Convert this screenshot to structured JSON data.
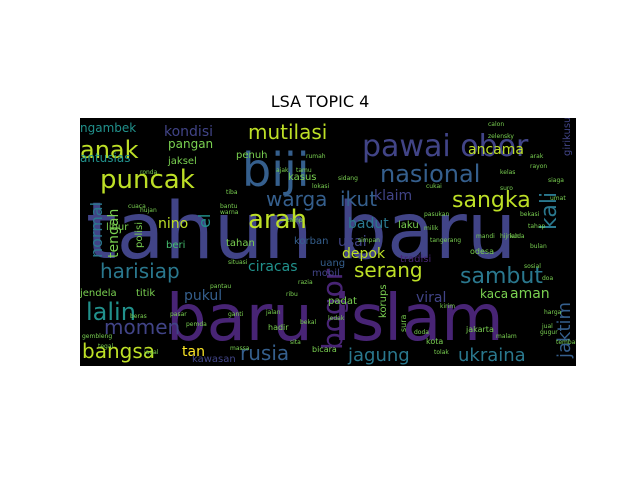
{
  "title": "LSA TOPIC 4",
  "colors": {
    "background": "#000000",
    "palette": [
      "#440154",
      "#482475",
      "#414487",
      "#355f8d",
      "#2a788e",
      "#21918c",
      "#22a884",
      "#44bf70",
      "#7ad151",
      "#bddf26",
      "#fde725"
    ]
  },
  "words": [
    {
      "text": "tahun baru",
      "color": "#414487"
    },
    {
      "text": "baru islam",
      "color": "#482475"
    },
    {
      "text": "biji",
      "color": "#355f8d"
    },
    {
      "text": "pawai obor",
      "color": "#414487"
    },
    {
      "text": "puncak",
      "color": "#bddf26"
    },
    {
      "text": "anak",
      "color": "#bddf26"
    },
    {
      "text": "mutilasi",
      "color": "#bddf26"
    },
    {
      "text": "nasional",
      "color": "#355f8d"
    },
    {
      "text": "sangka",
      "color": "#bddf26"
    },
    {
      "text": "kali",
      "color": "#2a788e"
    },
    {
      "text": "arah",
      "color": "#bddf26"
    },
    {
      "text": "warga",
      "color": "#355f8d"
    },
    {
      "text": "ikut",
      "color": "#355f8d"
    },
    {
      "text": "harisiap",
      "color": "#2a788e"
    },
    {
      "text": "serang",
      "color": "#bddf26"
    },
    {
      "text": "sambut",
      "color": "#2a788e"
    },
    {
      "text": "bogor",
      "color": "#482475"
    },
    {
      "text": "lalin",
      "color": "#21918c"
    },
    {
      "text": "momen",
      "color": "#414487"
    },
    {
      "text": "bangsa",
      "color": "#bddf26"
    },
    {
      "text": "tan",
      "color": "#fde725"
    },
    {
      "text": "rusia",
      "color": "#355f8d"
    },
    {
      "text": "jagung",
      "color": "#2a788e"
    },
    {
      "text": "ukraina",
      "color": "#2a788e"
    },
    {
      "text": "jaktim",
      "color": "#355f8d"
    },
    {
      "text": "aman",
      "color": "#7ad151"
    },
    {
      "text": "ancama",
      "color": "#bddf26"
    },
    {
      "text": "klaim",
      "color": "#414487"
    },
    {
      "text": "kondisi",
      "color": "#414487"
    },
    {
      "text": "antusias",
      "color": "#21918c"
    },
    {
      "text": "ngambek",
      "color": "#21918c"
    },
    {
      "text": "pangan",
      "color": "#7ad151"
    },
    {
      "text": "jaksel",
      "color": "#7ad151"
    },
    {
      "text": "normal",
      "color": "#2a788e"
    },
    {
      "text": "tengah",
      "color": "#7ad151"
    },
    {
      "text": "nino",
      "color": "#bddf26"
    },
    {
      "text": "el",
      "color": "#21918c"
    },
    {
      "text": "beri",
      "color": "#44bf70"
    },
    {
      "text": "ciracas",
      "color": "#21918c"
    },
    {
      "text": "depok",
      "color": "#bddf26"
    },
    {
      "text": "usai",
      "color": "#414487"
    },
    {
      "text": "badut",
      "color": "#2a788e"
    },
    {
      "text": "viral",
      "color": "#414487"
    },
    {
      "text": "kaca",
      "color": "#7ad151"
    },
    {
      "text": "pukul",
      "color": "#355f8d"
    },
    {
      "text": "jendela",
      "color": "#7ad151"
    },
    {
      "text": "titik",
      "color": "#7ad151"
    },
    {
      "text": "korban",
      "color": "#355f8d"
    },
    {
      "text": "mobil",
      "color": "#414487"
    },
    {
      "text": "uang",
      "color": "#355f8d"
    },
    {
      "text": "korups",
      "color": "#7ad151"
    },
    {
      "text": "tradisi",
      "color": "#482475"
    },
    {
      "text": "kawasan",
      "color": "#414487"
    },
    {
      "text": "padat",
      "color": "#7ad151"
    },
    {
      "text": "kasus",
      "color": "#7ad151"
    },
    {
      "text": "penuh",
      "color": "#7ad151"
    },
    {
      "text": "polisi",
      "color": "#7ad151"
    },
    {
      "text": "libur",
      "color": "#7ad151"
    },
    {
      "text": "tahan",
      "color": "#7ad151"
    },
    {
      "text": "laku",
      "color": "#7ad151"
    },
    {
      "text": "girikusumo",
      "color": "#414487"
    },
    {
      "text": "jakarta",
      "color": "#7ad151"
    },
    {
      "text": "kota",
      "color": "#7ad151"
    },
    {
      "text": "bicara",
      "color": "#7ad151"
    },
    {
      "text": "odesa",
      "color": "#7ad151"
    },
    {
      "text": "hadir",
      "color": "#7ad151"
    },
    {
      "text": "sura",
      "color": "#7ad151"
    },
    {
      "text": "calon",
      "color": "#7ad151"
    },
    {
      "text": "zelensky",
      "color": "#7ad151"
    },
    {
      "text": "simpan",
      "color": "#7ad151"
    },
    {
      "text": "kelas",
      "color": "#7ad151"
    },
    {
      "text": "gembleng",
      "color": "#7ad151"
    },
    {
      "text": "siaga",
      "color": "#7ad151"
    },
    {
      "text": "pasukan",
      "color": "#7ad151"
    },
    {
      "text": "massa",
      "color": "#7ad151"
    },
    {
      "text": "sita",
      "color": "#7ad151"
    },
    {
      "text": "tiba",
      "color": "#7ad151"
    },
    {
      "text": "situasi",
      "color": "#7ad151"
    },
    {
      "text": "bulan",
      "color": "#7ad151"
    },
    {
      "text": "tangerang",
      "color": "#7ad151"
    },
    {
      "text": "bekasi",
      "color": "#7ad151"
    },
    {
      "text": "jual",
      "color": "#7ad151"
    },
    {
      "text": "harga",
      "color": "#7ad151"
    },
    {
      "text": "beras",
      "color": "#7ad151"
    },
    {
      "text": "pasar",
      "color": "#7ad151"
    },
    {
      "text": "jalan",
      "color": "#7ad151"
    },
    {
      "text": "ribu",
      "color": "#7ad151"
    },
    {
      "text": "sosial",
      "color": "#7ad151"
    },
    {
      "text": "umat",
      "color": "#7ad151"
    },
    {
      "text": "hijriah",
      "color": "#7ad151"
    },
    {
      "text": "doa",
      "color": "#7ad151"
    },
    {
      "text": "malam",
      "color": "#7ad151"
    },
    {
      "text": "tegal",
      "color": "#7ad151"
    },
    {
      "text": "jagal",
      "color": "#7ad151"
    },
    {
      "text": "lokasi",
      "color": "#7ad151"
    },
    {
      "text": "rumah",
      "color": "#7ad151"
    },
    {
      "text": "sidang",
      "color": "#7ad151"
    },
    {
      "text": "milik",
      "color": "#7ad151"
    },
    {
      "text": "tolak",
      "color": "#7ad151"
    },
    {
      "text": "ganti",
      "color": "#7ad151"
    },
    {
      "text": "cuaca",
      "color": "#7ad151"
    },
    {
      "text": "hujan",
      "color": "#7ad151"
    },
    {
      "text": "bantu",
      "color": "#7ad151"
    },
    {
      "text": "warna",
      "color": "#7ad151"
    },
    {
      "text": "ledak",
      "color": "#7ad151"
    },
    {
      "text": "kirim",
      "color": "#7ad151"
    },
    {
      "text": "pemda",
      "color": "#7ad151"
    },
    {
      "text": "pantau",
      "color": "#7ad151"
    },
    {
      "text": "razia",
      "color": "#7ad151"
    },
    {
      "text": "mandi",
      "color": "#7ad151"
    },
    {
      "text": "kuda",
      "color": "#7ad151"
    },
    {
      "text": "ajak",
      "color": "#7ad151"
    },
    {
      "text": "tamu",
      "color": "#7ad151"
    },
    {
      "text": "ronda",
      "color": "#7ad151"
    },
    {
      "text": "suro",
      "color": "#7ad151"
    },
    {
      "text": "doda",
      "color": "#7ad151"
    },
    {
      "text": "arak",
      "color": "#7ad151"
    },
    {
      "text": "rayon",
      "color": "#7ad151"
    },
    {
      "text": "cukai",
      "color": "#7ad151"
    },
    {
      "text": "kamp",
      "color": "#7ad151"
    },
    {
      "text": "tahap",
      "color": "#7ad151"
    },
    {
      "text": "bekal",
      "color": "#7ad151"
    },
    {
      "text": "gugur",
      "color": "#7ad151"
    },
    {
      "text": "tembak",
      "color": "#7ad151"
    }
  ]
}
